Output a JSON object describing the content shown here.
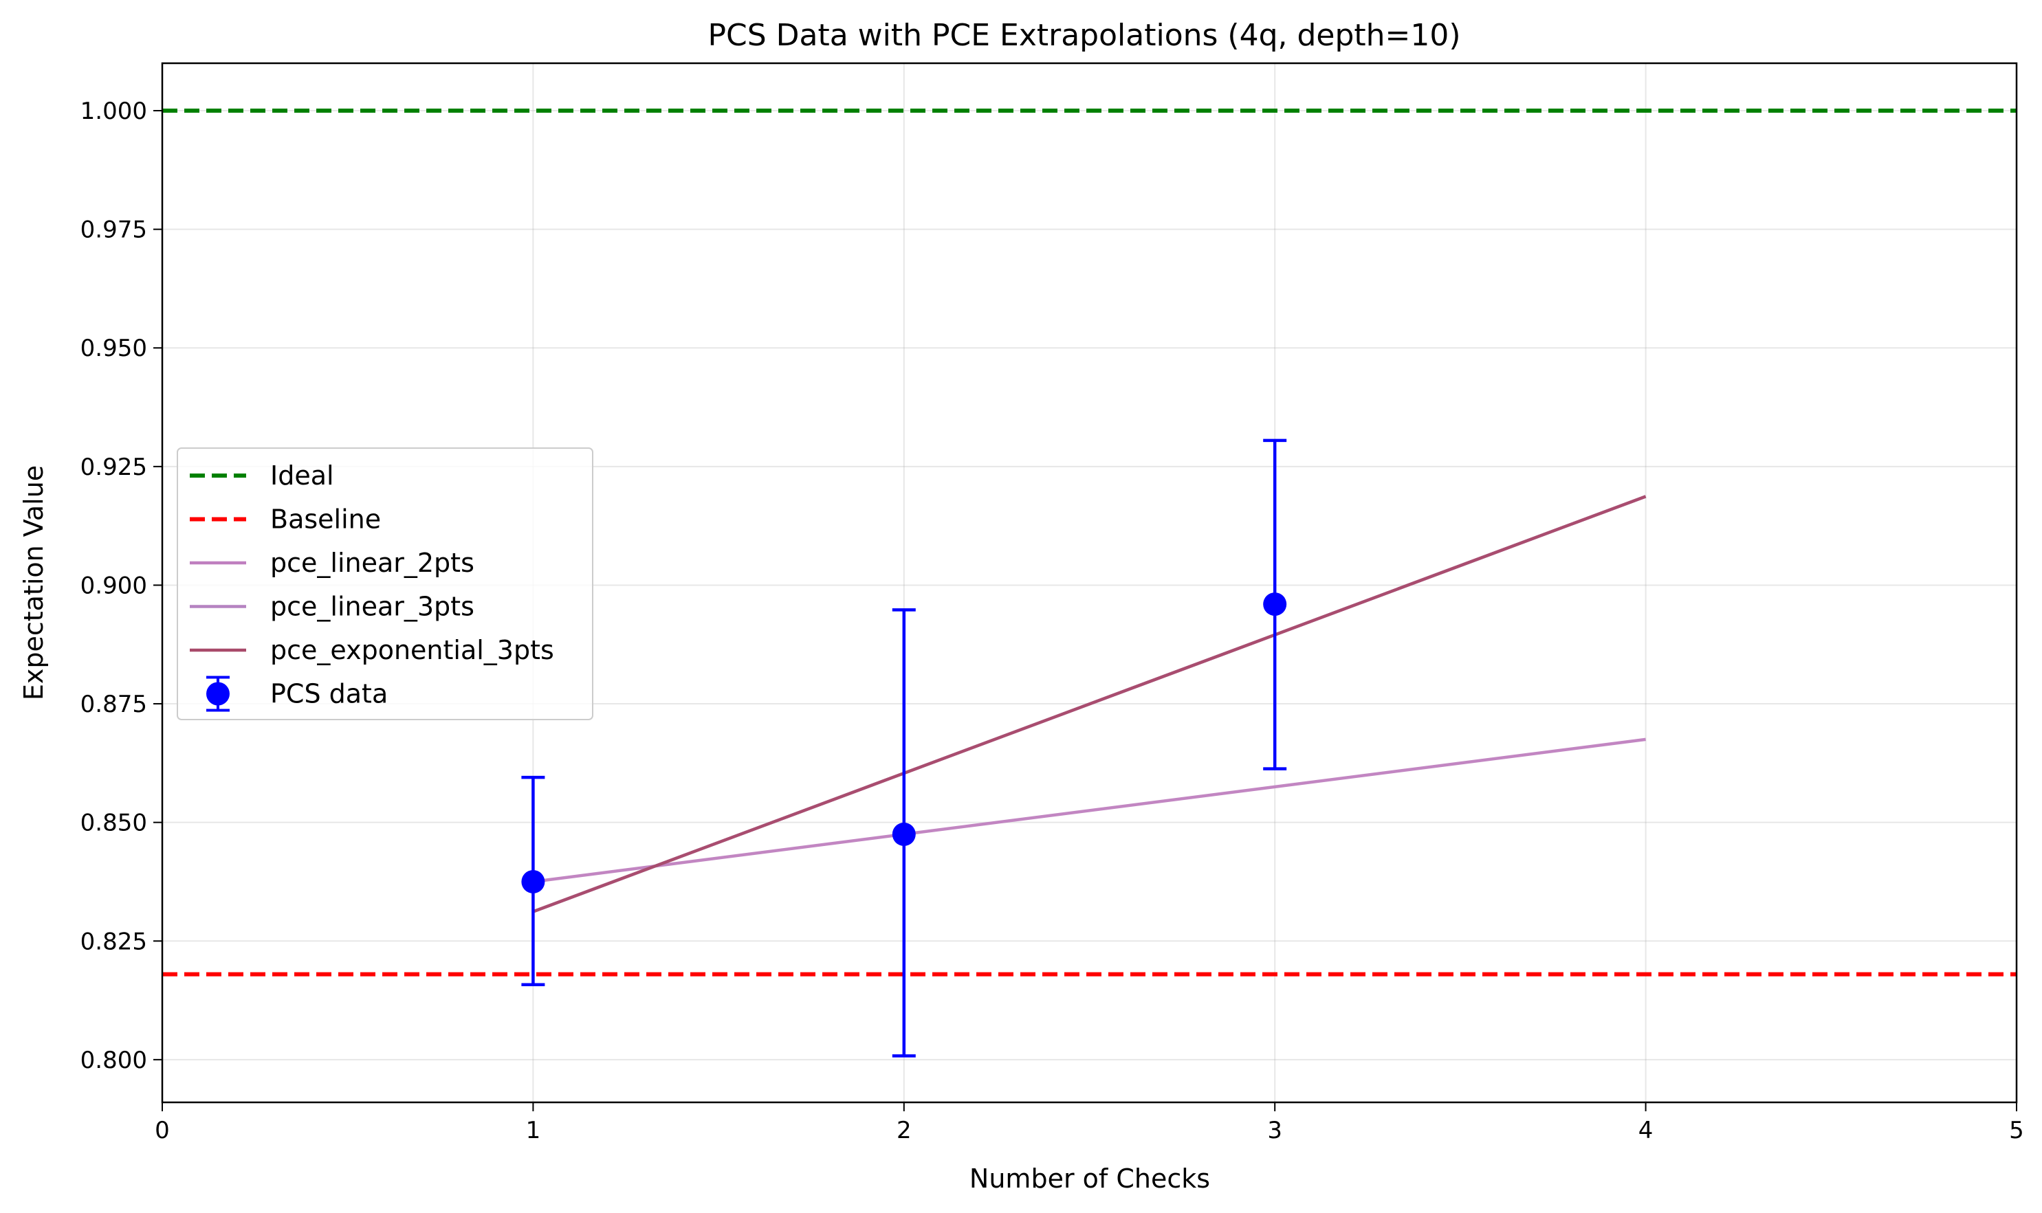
{
  "chart_data": {
    "type": "line",
    "title": "PCS Data with PCE Extrapolations (4q, depth=10)",
    "xlabel": "Number of Checks",
    "ylabel": "Expectation Value",
    "xlim": [
      0,
      5
    ],
    "ylim": [
      0.791,
      1.01
    ],
    "xticks": [
      "0",
      "1",
      "2",
      "3",
      "4",
      "5"
    ],
    "yticks": [
      "0.800",
      "0.825",
      "0.850",
      "0.875",
      "0.900",
      "0.925",
      "0.950",
      "0.975",
      "1.000"
    ],
    "grid": true,
    "legend_position": "center-left",
    "hlines": [
      {
        "name": "Ideal",
        "y": 1.0,
        "color": "#008000",
        "style": "dashed"
      },
      {
        "name": "Baseline",
        "y": 0.818,
        "color": "#ff0000",
        "style": "dashed"
      }
    ],
    "series": [
      {
        "name": "pce_linear_2pts",
        "x": [
          1,
          4
        ],
        "y": [
          0.8375,
          0.8675
        ],
        "color": "#bf7fbf"
      },
      {
        "name": "pce_linear_3pts",
        "x": [
          1,
          4
        ],
        "y": [
          0.8312,
          0.9187
        ],
        "color": "#b583c1"
      },
      {
        "name": "pce_exponential_3pts",
        "x": [
          1,
          4
        ],
        "y": [
          0.8312,
          0.9187
        ],
        "color": "#a84a6a"
      }
    ],
    "points": {
      "name": "PCS data",
      "color": "#0000ff",
      "x": [
        1,
        2,
        3
      ],
      "y": [
        0.8375,
        0.8475,
        0.896
      ],
      "yerr_low": [
        0.8158,
        0.8008,
        0.8613
      ],
      "yerr_high": [
        0.8595,
        0.8948,
        0.9305
      ]
    }
  }
}
